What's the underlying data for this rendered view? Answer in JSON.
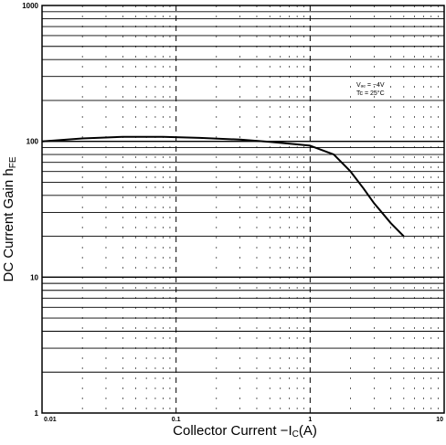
{
  "chart_data": {
    "type": "line",
    "title": "",
    "xlabel": "Collector Current −I",
    "xlabel_sub": "C",
    "xlabel_tail": "(A)",
    "ylabel": "DC Current Gain h",
    "ylabel_sub": "FE",
    "xscale": "log",
    "yscale": "log",
    "xlim": [
      0.01,
      10
    ],
    "ylim": [
      1,
      1000
    ],
    "x_tick_labels": [
      "0.01",
      "0.1",
      "1",
      "10"
    ],
    "y_tick_labels": [
      "1",
      "10",
      "100",
      "1000"
    ],
    "grid": true,
    "annotations": [
      "Vₐₑ = −4V",
      "Tc = 25°C"
    ],
    "series": [
      {
        "x": [
          0.01,
          0.02,
          0.04,
          0.08,
          0.15,
          0.3,
          0.5,
          0.8,
          1.0,
          1.5,
          2.0,
          2.5,
          3.0,
          4.0,
          5.0
        ],
        "y": [
          100,
          105,
          108,
          108,
          106,
          103,
          99,
          95,
          93,
          80,
          60,
          45,
          35,
          25,
          20
        ]
      }
    ]
  }
}
